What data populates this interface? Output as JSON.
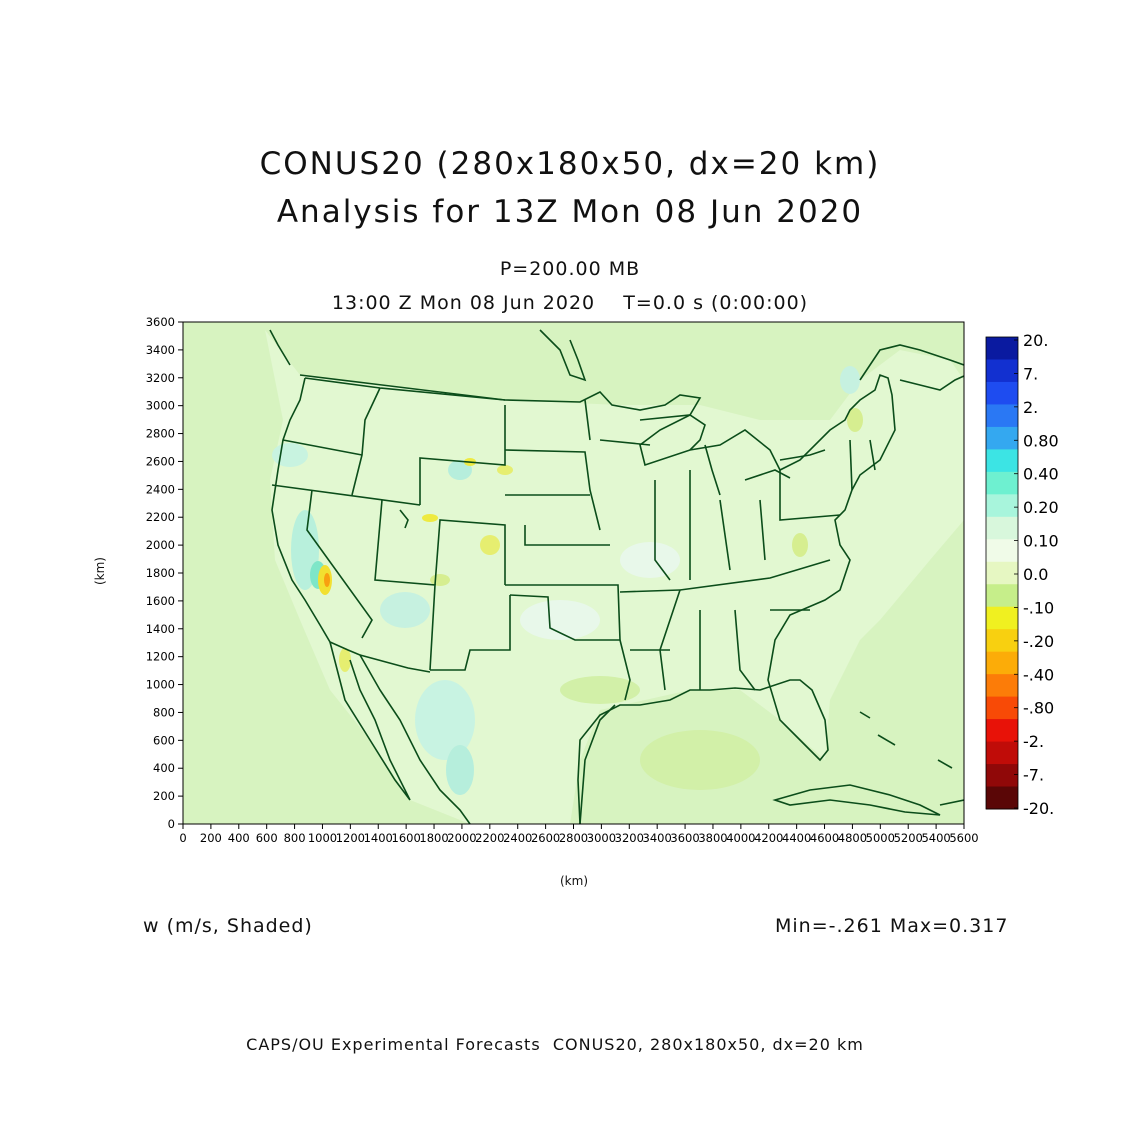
{
  "header": {
    "title_line1": "CONUS20 (280x180x50, dx=20 km)",
    "title_line2": "Analysis for 13Z Mon 08 Jun 2020",
    "level": "P=200.00 MB",
    "time": "13:00 Z Mon 08 Jun 2020    T=0.0 s (0:00:00)"
  },
  "field": {
    "label": "w (m/s, Shaded)",
    "minmax": "Min=-.261 Max=0.317"
  },
  "footer": "CAPS/OU Experimental Forecasts  CONUS20, 280x180x50, dx=20 km",
  "axes": {
    "x_unit": "(km)",
    "y_unit": "(km)",
    "x_ticks": [
      "0",
      "200",
      "400",
      "600",
      "800",
      "1000",
      "1200",
      "1400",
      "1600",
      "1800",
      "2000",
      "2200",
      "2400",
      "2600",
      "2800",
      "3000",
      "3200",
      "3400",
      "3600",
      "3800",
      "4000",
      "4200",
      "4400",
      "4600",
      "4800",
      "5000",
      "5200",
      "5400",
      "5600"
    ],
    "y_ticks": [
      "0",
      "200",
      "400",
      "600",
      "800",
      "1000",
      "1200",
      "1400",
      "1600",
      "1800",
      "2000",
      "2200",
      "2400",
      "2600",
      "2800",
      "3000",
      "3200",
      "3400",
      "3600"
    ],
    "xlim": [
      0,
      5600
    ],
    "ylim": [
      0,
      3600
    ]
  },
  "colorbar": {
    "labels": [
      "20.",
      "7.",
      "2.",
      "0.80",
      "0.40",
      "0.20",
      "0.10",
      "0.0",
      "-.10",
      "-.20",
      "-.40",
      "-.80",
      "-2.",
      "-7.",
      "-20."
    ],
    "colors": [
      "#0a1aa0",
      "#1230d0",
      "#1e4cf0",
      "#2a78f4",
      "#34a8f0",
      "#3ce4e4",
      "#6ef0d0",
      "#a8f5dc",
      "#d8f7dc",
      "#f0fbe8",
      "#e6f7c2",
      "#c6ee8a",
      "#f0f020",
      "#f8d010",
      "#fcac08",
      "#fc7c08",
      "#f84a06",
      "#e81208",
      "#c00c08",
      "#900808",
      "#5a0606"
    ]
  },
  "map": {
    "background_color": "#d7f3c0",
    "coast_color": "#0b4d1a"
  }
}
